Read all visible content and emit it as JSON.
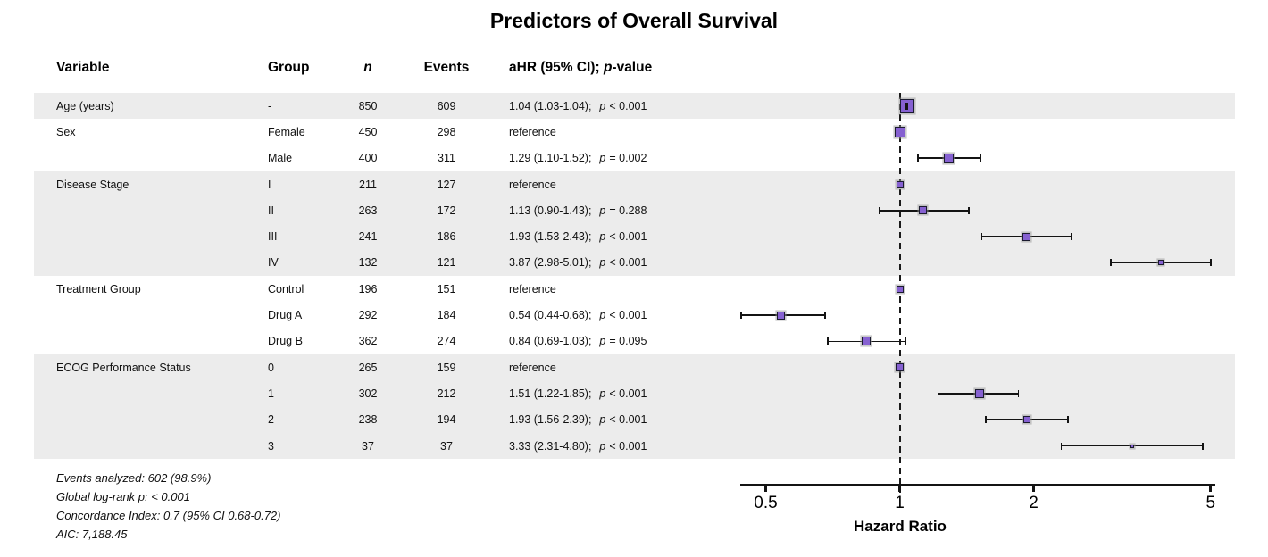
{
  "title": "Predictors of Overall Survival",
  "header": {
    "variable": "Variable",
    "group": "Group",
    "n": "n",
    "events": "Events",
    "ahr_prefix": "aHR (95% CI); ",
    "p_label": "p",
    "ahr_suffix": "-value"
  },
  "rows": [
    {
      "variable": "Age (years)",
      "group": "-",
      "n": 850,
      "events": 609,
      "hr_text": "1.04 (1.03-1.04);",
      "p_label": "p",
      "p_value": "< 0.001",
      "hr": 1.04,
      "ci_low": 1.03,
      "ci_high": 1.04,
      "section": 0
    },
    {
      "variable": "Sex",
      "group": "Female",
      "n": 450,
      "events": 298,
      "hr_text": "reference",
      "p_label": "",
      "p_value": "",
      "hr": 1.0,
      "ci_low": null,
      "ci_high": null,
      "section": 1
    },
    {
      "variable": "",
      "group": "Male",
      "n": 400,
      "events": 311,
      "hr_text": "1.29 (1.10-1.52);",
      "p_label": "p",
      "p_value": "= 0.002",
      "hr": 1.29,
      "ci_low": 1.1,
      "ci_high": 1.52,
      "section": 1
    },
    {
      "variable": "Disease Stage",
      "group": "I",
      "n": 211,
      "events": 127,
      "hr_text": "reference",
      "p_label": "",
      "p_value": "",
      "hr": 1.0,
      "ci_low": null,
      "ci_high": null,
      "section": 2
    },
    {
      "variable": "",
      "group": "II",
      "n": 263,
      "events": 172,
      "hr_text": "1.13 (0.90-1.43);",
      "p_label": "p",
      "p_value": "= 0.288",
      "hr": 1.13,
      "ci_low": 0.9,
      "ci_high": 1.43,
      "section": 2
    },
    {
      "variable": "",
      "group": "III",
      "n": 241,
      "events": 186,
      "hr_text": "1.93 (1.53-2.43);",
      "p_label": "p",
      "p_value": "< 0.001",
      "hr": 1.93,
      "ci_low": 1.53,
      "ci_high": 2.43,
      "section": 2
    },
    {
      "variable": "",
      "group": "IV",
      "n": 132,
      "events": 121,
      "hr_text": "3.87 (2.98-5.01);",
      "p_label": "p",
      "p_value": "< 0.001",
      "hr": 3.87,
      "ci_low": 2.98,
      "ci_high": 5.01,
      "section": 2
    },
    {
      "variable": "Treatment Group",
      "group": "Control",
      "n": 196,
      "events": 151,
      "hr_text": "reference",
      "p_label": "",
      "p_value": "",
      "hr": 1.0,
      "ci_low": null,
      "ci_high": null,
      "section": 3
    },
    {
      "variable": "",
      "group": "Drug A",
      "n": 292,
      "events": 184,
      "hr_text": "0.54 (0.44-0.68);",
      "p_label": "p",
      "p_value": "< 0.001",
      "hr": 0.54,
      "ci_low": 0.44,
      "ci_high": 0.68,
      "section": 3
    },
    {
      "variable": "",
      "group": "Drug B",
      "n": 362,
      "events": 274,
      "hr_text": "0.84 (0.69-1.03);",
      "p_label": "p",
      "p_value": "= 0.095",
      "hr": 0.84,
      "ci_low": 0.69,
      "ci_high": 1.03,
      "section": 3
    },
    {
      "variable": "ECOG Performance Status",
      "group": "0",
      "n": 265,
      "events": 159,
      "hr_text": "reference",
      "p_label": "",
      "p_value": "",
      "hr": 1.0,
      "ci_low": null,
      "ci_high": null,
      "section": 4
    },
    {
      "variable": "",
      "group": "1",
      "n": 302,
      "events": 212,
      "hr_text": "1.51 (1.22-1.85);",
      "p_label": "p",
      "p_value": "< 0.001",
      "hr": 1.51,
      "ci_low": 1.22,
      "ci_high": 1.85,
      "section": 4
    },
    {
      "variable": "",
      "group": "2",
      "n": 238,
      "events": 194,
      "hr_text": "1.93 (1.56-2.39);",
      "p_label": "p",
      "p_value": "< 0.001",
      "hr": 1.93,
      "ci_low": 1.56,
      "ci_high": 2.39,
      "section": 4
    },
    {
      "variable": "",
      "group": "3",
      "n": 37,
      "events": 37,
      "hr_text": "3.33 (2.31-4.80);",
      "p_label": "p",
      "p_value": "< 0.001",
      "hr": 3.33,
      "ci_low": 2.31,
      "ci_high": 4.8,
      "section": 4
    }
  ],
  "axis": {
    "label": "Hazard Ratio",
    "ticks": [
      0.5,
      1,
      2,
      5
    ],
    "reference_value": 1
  },
  "footnotes": [
    "Events analyzed: 602 (98.9%)",
    "Global log-rank p: < 0.001",
    "Concordance Index: 0.7 (95% CI 0.68-0.72)",
    "AIC: 7,188.45"
  ],
  "colors": {
    "marker_fill": "#8661D1",
    "marker_border": "#1B1B2F",
    "band_gray": "#ECECEC",
    "line_black": "#141414"
  },
  "chart_data": {
    "type": "scatter",
    "subtype": "forest-plot",
    "title": "Predictors of Overall Survival",
    "xlabel": "Hazard Ratio",
    "x_scale": "log",
    "x_ticks": [
      0.5,
      1,
      2,
      5
    ],
    "x_range": [
      0.44,
      5.01
    ],
    "reference_line": 1,
    "legend": "none",
    "points": [
      {
        "variable": "Age (years)",
        "group": "-",
        "n": 850,
        "events": 609,
        "hr": 1.04,
        "ci_low": 1.03,
        "ci_high": 1.04,
        "p": "< 0.001"
      },
      {
        "variable": "Sex",
        "group": "Female",
        "n": 450,
        "events": 298,
        "hr": 1.0,
        "ci_low": null,
        "ci_high": null,
        "p": "reference"
      },
      {
        "variable": "Sex",
        "group": "Male",
        "n": 400,
        "events": 311,
        "hr": 1.29,
        "ci_low": 1.1,
        "ci_high": 1.52,
        "p": "= 0.002"
      },
      {
        "variable": "Disease Stage",
        "group": "I",
        "n": 211,
        "events": 127,
        "hr": 1.0,
        "ci_low": null,
        "ci_high": null,
        "p": "reference"
      },
      {
        "variable": "Disease Stage",
        "group": "II",
        "n": 263,
        "events": 172,
        "hr": 1.13,
        "ci_low": 0.9,
        "ci_high": 1.43,
        "p": "= 0.288"
      },
      {
        "variable": "Disease Stage",
        "group": "III",
        "n": 241,
        "events": 186,
        "hr": 1.93,
        "ci_low": 1.53,
        "ci_high": 2.43,
        "p": "< 0.001"
      },
      {
        "variable": "Disease Stage",
        "group": "IV",
        "n": 132,
        "events": 121,
        "hr": 3.87,
        "ci_low": 2.98,
        "ci_high": 5.01,
        "p": "< 0.001"
      },
      {
        "variable": "Treatment Group",
        "group": "Control",
        "n": 196,
        "events": 151,
        "hr": 1.0,
        "ci_low": null,
        "ci_high": null,
        "p": "reference"
      },
      {
        "variable": "Treatment Group",
        "group": "Drug A",
        "n": 292,
        "events": 184,
        "hr": 0.54,
        "ci_low": 0.44,
        "ci_high": 0.68,
        "p": "< 0.001"
      },
      {
        "variable": "Treatment Group",
        "group": "Drug B",
        "n": 362,
        "events": 274,
        "hr": 0.84,
        "ci_low": 0.69,
        "ci_high": 1.03,
        "p": "= 0.095"
      },
      {
        "variable": "ECOG Performance Status",
        "group": "0",
        "n": 265,
        "events": 159,
        "hr": 1.0,
        "ci_low": null,
        "ci_high": null,
        "p": "reference"
      },
      {
        "variable": "ECOG Performance Status",
        "group": "1",
        "n": 302,
        "events": 212,
        "hr": 1.51,
        "ci_low": 1.22,
        "ci_high": 1.85,
        "p": "< 0.001"
      },
      {
        "variable": "ECOG Performance Status",
        "group": "2",
        "n": 238,
        "events": 194,
        "hr": 1.93,
        "ci_low": 1.56,
        "ci_high": 2.39,
        "p": "< 0.001"
      },
      {
        "variable": "ECOG Performance Status",
        "group": "3",
        "n": 37,
        "events": 37,
        "hr": 3.33,
        "ci_low": 2.31,
        "ci_high": 4.8,
        "p": "< 0.001"
      }
    ]
  }
}
